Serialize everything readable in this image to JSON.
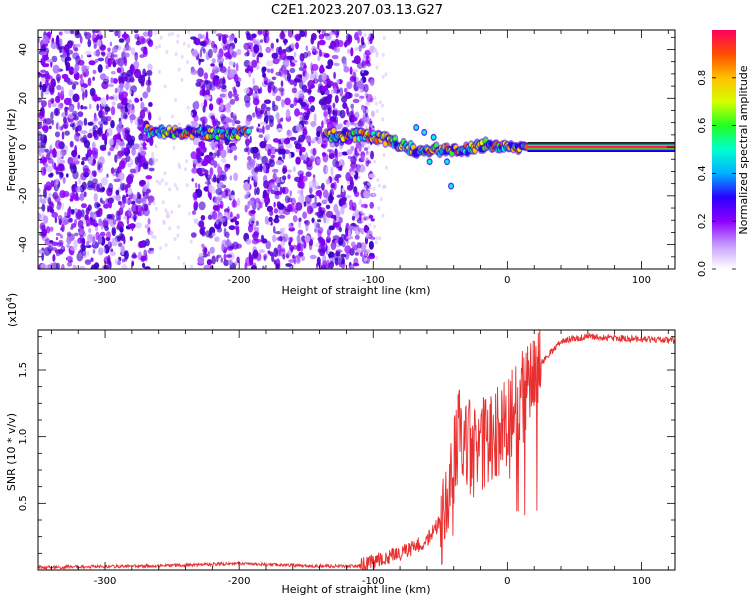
{
  "title": "C2E1.2023.207.03.13.G27",
  "chart_data": [
    {
      "type": "heatmap",
      "xlabel": "Height of straight line (km)",
      "ylabel": "Frequency (Hz)",
      "xlim": [
        -350,
        125
      ],
      "ylim": [
        -50,
        48
      ],
      "x_ticks": [
        -300,
        -200,
        -100,
        0,
        100
      ],
      "y_ticks": [
        -40,
        -20,
        0,
        20,
        40
      ],
      "colorbar": {
        "label": "Normalized spectral amplitude",
        "range": [
          0,
          1
        ],
        "ticks": [
          "0.0",
          "0.2",
          "0.4",
          "0.6",
          "0.8"
        ],
        "colormap": [
          "#ffffff",
          "#c59bff",
          "#8e00ff",
          "#2a00ff",
          "#00b0ff",
          "#00ffd0",
          "#22ff22",
          "#d6ff00",
          "#ffc000",
          "#ff4d00",
          "#ff0060"
        ]
      },
      "features": {
        "noise_bands_x": [
          [
            -350,
            -265
          ],
          [
            -235,
            -200
          ],
          [
            -195,
            -100
          ]
        ],
        "ridge": [
          {
            "x": -270,
            "y": 7
          },
          {
            "x": -250,
            "y": 6
          },
          {
            "x": -230,
            "y": 6
          },
          {
            "x": -210,
            "y": 5
          },
          {
            "x": -195,
            "y": 6
          },
          {
            "x": -130,
            "y": 5
          },
          {
            "x": -110,
            "y": 5
          },
          {
            "x": -95,
            "y": 4
          },
          {
            "x": -80,
            "y": 1
          },
          {
            "x": -65,
            "y": -2
          },
          {
            "x": -55,
            "y": -1
          },
          {
            "x": -45,
            "y": -1
          },
          {
            "x": -35,
            "y": -2
          },
          {
            "x": -25,
            "y": 0
          },
          {
            "x": -15,
            "y": 1
          },
          {
            "x": -5,
            "y": 0
          },
          {
            "x": 15,
            "y": 0
          },
          {
            "x": 125,
            "y": 0
          }
        ],
        "steady_line": {
          "x_start": 15,
          "x_end": 125,
          "y": 0
        }
      }
    },
    {
      "type": "line",
      "xlabel": "Height of straight line (km)",
      "ylabel": "SNR (10 * v/v)",
      "multiplier": "(x10",
      "multiplier_exp": "4",
      "xlim": [
        -350,
        125
      ],
      "ylim": [
        0,
        1.8
      ],
      "x_ticks": [
        -300,
        -200,
        -100,
        0,
        100
      ],
      "y_ticks": [
        0.5,
        1.0,
        1.5
      ],
      "y_tick_labels": [
        "0.5",
        "1.0",
        "1.5"
      ],
      "color": "#e83030",
      "envelope": [
        {
          "x": -350,
          "y": 0.02
        },
        {
          "x": -260,
          "y": 0.03
        },
        {
          "x": -200,
          "y": 0.05
        },
        {
          "x": -150,
          "y": 0.03
        },
        {
          "x": -110,
          "y": 0.03
        },
        {
          "x": -80,
          "y": 0.12
        },
        {
          "x": -60,
          "y": 0.22
        },
        {
          "x": -45,
          "y": 0.45
        },
        {
          "x": -35,
          "y": 1.1
        },
        {
          "x": -25,
          "y": 0.85
        },
        {
          "x": -15,
          "y": 1.0
        },
        {
          "x": -5,
          "y": 1.05
        },
        {
          "x": 5,
          "y": 1.2
        },
        {
          "x": 15,
          "y": 1.35
        },
        {
          "x": 25,
          "y": 1.55
        },
        {
          "x": 40,
          "y": 1.72
        },
        {
          "x": 60,
          "y": 1.75
        },
        {
          "x": 100,
          "y": 1.73
        },
        {
          "x": 125,
          "y": 1.72
        }
      ]
    }
  ]
}
